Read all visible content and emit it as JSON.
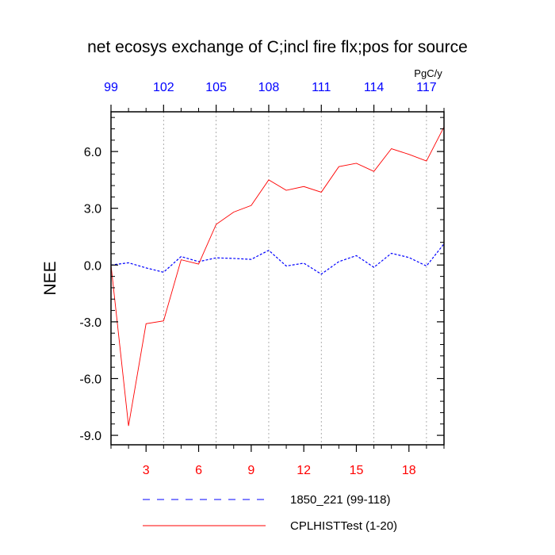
{
  "chart_data": {
    "type": "line",
    "title": "net ecosys exchange of C;incl fire flx;pos for source",
    "ylabel": "NEE",
    "units": "PgC/y",
    "ylim": [
      -9.5,
      8.1
    ],
    "yticks": [
      {
        "v": 6.0,
        "label": "6.0"
      },
      {
        "v": 3.0,
        "label": "3.0"
      },
      {
        "v": 0.0,
        "label": "0.0"
      },
      {
        "v": -3.0,
        "label": "-3.0"
      },
      {
        "v": -6.0,
        "label": "-6.0"
      },
      {
        "v": -9.0,
        "label": "-9.0"
      }
    ],
    "bottom_axis": {
      "color": "#ff0000",
      "range": [
        1,
        20
      ],
      "ticks": [
        {
          "v": 3,
          "label": "3"
        },
        {
          "v": 6,
          "label": "6"
        },
        {
          "v": 9,
          "label": "9"
        },
        {
          "v": 12,
          "label": "12"
        },
        {
          "v": 15,
          "label": "15"
        },
        {
          "v": 18,
          "label": "18"
        }
      ]
    },
    "top_axis": {
      "color": "#0000ff",
      "range": [
        99,
        118
      ],
      "ticks": [
        {
          "v": 99,
          "label": "99"
        },
        {
          "v": 102,
          "label": "102"
        },
        {
          "v": 105,
          "label": "105"
        },
        {
          "v": 108,
          "label": "108"
        },
        {
          "v": 111,
          "label": "111"
        },
        {
          "v": 114,
          "label": "114"
        },
        {
          "v": 117,
          "label": "117"
        }
      ]
    },
    "grid": "vertical dashed at top-axis ticks",
    "legend_placement": "bottom",
    "series": [
      {
        "name": "1850_221 (99-118)",
        "color": "#0000ff",
        "style": "dashed",
        "x": [
          99,
          100,
          101,
          102,
          103,
          104,
          105,
          106,
          107,
          108,
          109,
          110,
          111,
          112,
          113,
          114,
          115,
          116,
          117,
          118
        ],
        "values": [
          0.0,
          0.12,
          -0.15,
          -0.38,
          0.45,
          0.18,
          0.38,
          0.35,
          0.3,
          0.78,
          -0.05,
          0.1,
          -0.48,
          0.18,
          0.5,
          -0.12,
          0.62,
          0.4,
          -0.05,
          1.12
        ]
      },
      {
        "name": "CPLHISTTest (1-20)",
        "color": "#ff0000",
        "style": "solid",
        "x": [
          1,
          2,
          3,
          4,
          5,
          6,
          7,
          8,
          9,
          10,
          11,
          12,
          13,
          14,
          15,
          16,
          17,
          18,
          19,
          20
        ],
        "values": [
          0.0,
          -8.5,
          -3.1,
          -2.95,
          0.28,
          0.05,
          2.15,
          2.8,
          3.15,
          4.5,
          3.95,
          4.15,
          3.85,
          5.2,
          5.38,
          4.95,
          6.15,
          5.85,
          5.5,
          7.3
        ]
      }
    ]
  }
}
